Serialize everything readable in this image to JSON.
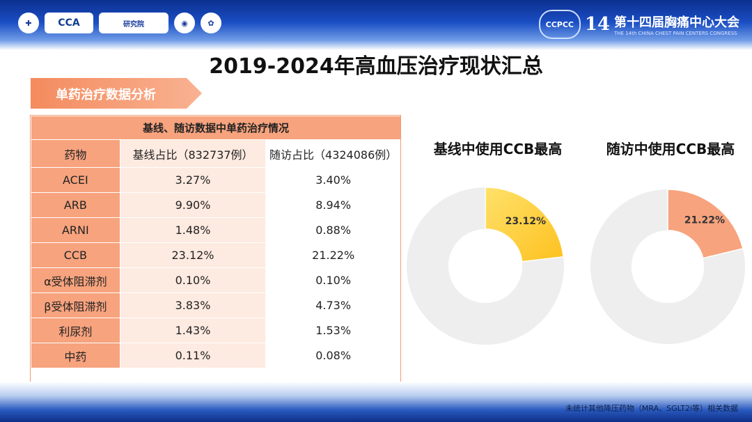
{
  "header": {
    "logos": [
      "CCA",
      "研究院"
    ],
    "congress_badge": "CCPCC",
    "congress_number": "14",
    "congress_title": "第十四届胸痛中心大会",
    "congress_subtitle": "THE 14th CHINA CHEST PAIN CENTERS CONGRESS"
  },
  "page_title": "2019-2024年高血压治疗现状汇总",
  "section_label": "单药治疗数据分析",
  "table": {
    "caption": "基线、随访数据中单药治疗情况",
    "headers": [
      "药物",
      "基线占比（832737例）",
      "随访占比（4324086例）"
    ],
    "rows": [
      {
        "drug": "ACEI",
        "baseline": "3.27%",
        "followup": "3.40%"
      },
      {
        "drug": "ARB",
        "baseline": "9.90%",
        "followup": "8.94%"
      },
      {
        "drug": "ARNI",
        "baseline": "1.48%",
        "followup": "0.88%"
      },
      {
        "drug": "CCB",
        "baseline": "23.12%",
        "followup": "21.22%"
      },
      {
        "drug": "α受体阻滞剂",
        "baseline": "0.10%",
        "followup": "0.10%"
      },
      {
        "drug": "β受体阻滞剂",
        "baseline": "3.83%",
        "followup": "4.73%"
      },
      {
        "drug": "利尿剂",
        "baseline": "1.43%",
        "followup": "1.53%"
      },
      {
        "drug": "中药",
        "baseline": "0.11%",
        "followup": "0.08%"
      }
    ]
  },
  "chart_data": [
    {
      "type": "pie",
      "title": "基线中使用CCB最高",
      "values": [
        23.12
      ],
      "value_labels": [
        "23.12%"
      ],
      "colors": {
        "highlight": "#fdc11f",
        "highlight_light": "#ffe16b",
        "rest": "#eeeeee"
      }
    },
    {
      "type": "pie",
      "title": "随访中使用CCB最高",
      "values": [
        21.22
      ],
      "value_labels": [
        "21.22%"
      ],
      "colors": {
        "highlight": "#f7a37e",
        "highlight_light": "#f7a37e",
        "rest": "#eeeeee"
      }
    }
  ],
  "footnote": "未统计其他降压药物（MRA、SGLT2i等）相关数据"
}
